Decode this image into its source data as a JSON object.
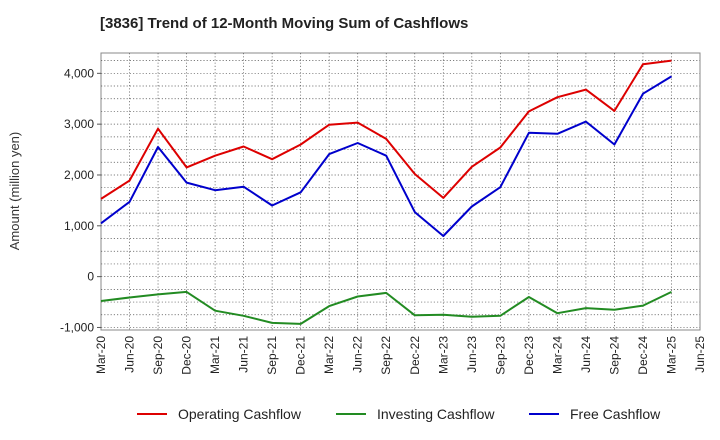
{
  "chart_data": {
    "type": "line",
    "title": "[3836]  Trend of 12-Month Moving Sum of Cashflows",
    "xlabel": "",
    "ylabel": "Amount (million yen)",
    "ylim": [
      -1050,
      4400
    ],
    "yticks": [
      -1000,
      0,
      1000,
      2000,
      3000,
      4000
    ],
    "ytick_labels": [
      "-1,000",
      "0",
      "1,000",
      "2,000",
      "3,000",
      "4,000"
    ],
    "grid": true,
    "legend_position": "bottom",
    "x": [
      "Mar-20",
      "Jun-20",
      "Sep-20",
      "Dec-20",
      "Mar-21",
      "Jun-21",
      "Sep-21",
      "Dec-21",
      "Mar-22",
      "Jun-22",
      "Sep-22",
      "Dec-22",
      "Mar-23",
      "Jun-23",
      "Sep-23",
      "Dec-23",
      "Mar-24",
      "Jun-24",
      "Sep-24",
      "Dec-24",
      "Mar-25",
      "Jun-25"
    ],
    "series": [
      {
        "name": "Operating Cashflow",
        "color": "#dd0000",
        "values": [
          1530,
          1890,
          2910,
          2150,
          2380,
          2560,
          2310,
          2600,
          2990,
          3030,
          2710,
          2020,
          1550,
          2160,
          2540,
          3250,
          3530,
          3680,
          3260,
          4180,
          4250,
          null
        ]
      },
      {
        "name": "Investing Cashflow",
        "color": "#228b22",
        "values": [
          -480,
          -410,
          -350,
          -300,
          -670,
          -770,
          -910,
          -930,
          -580,
          -390,
          -320,
          -760,
          -750,
          -790,
          -770,
          -400,
          -720,
          -620,
          -650,
          -570,
          -300,
          null
        ]
      },
      {
        "name": "Free Cashflow",
        "color": "#0000cc",
        "values": [
          1050,
          1470,
          2550,
          1850,
          1700,
          1770,
          1400,
          1660,
          2410,
          2630,
          2380,
          1270,
          800,
          1380,
          1760,
          2830,
          2810,
          3050,
          2600,
          3600,
          3940,
          null
        ]
      }
    ]
  }
}
